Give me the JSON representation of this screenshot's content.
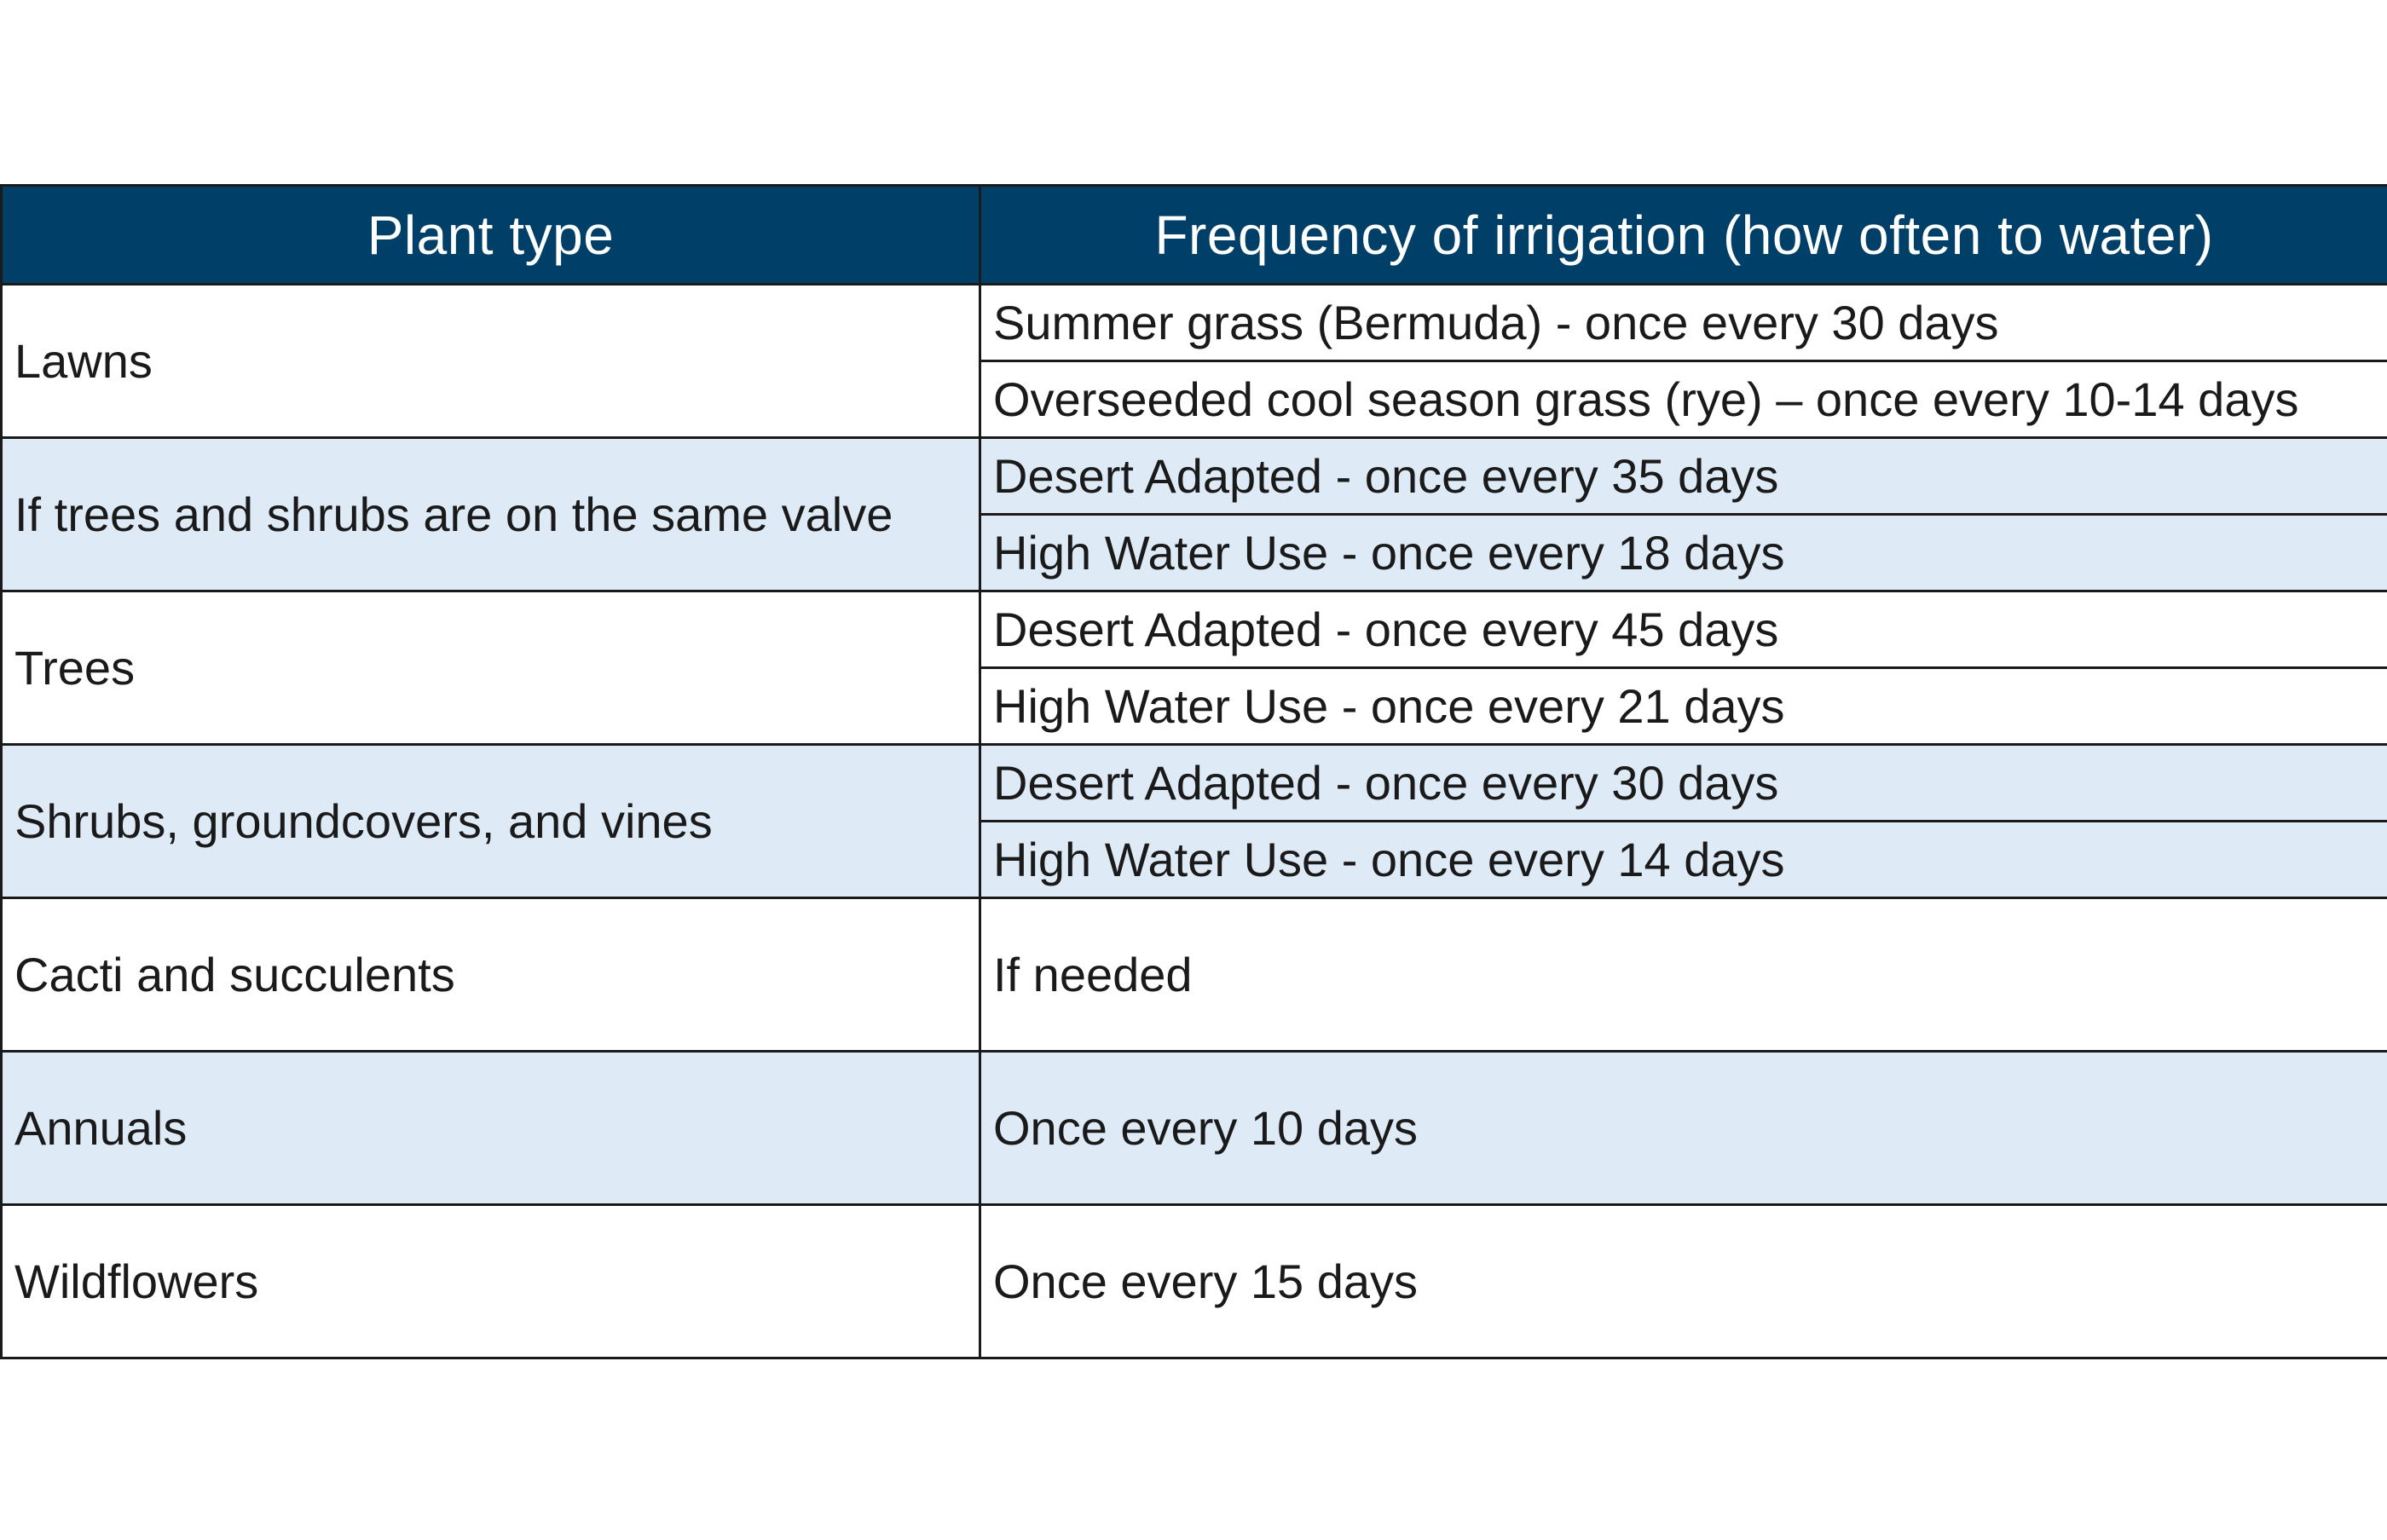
{
  "table": {
    "headers": {
      "plant_type": "Plant type",
      "frequency": "Frequency of irrigation (how often to water)"
    },
    "rows": [
      {
        "plant": "Lawns",
        "frequencies": [
          "Summer grass (Bermuda) - once every 30 days",
          "Overseeded cool season grass (rye) – once every 10-14 days"
        ]
      },
      {
        "plant": "If trees and shrubs are on the same valve",
        "frequencies": [
          "Desert Adapted - once every 35 days",
          "High Water Use - once every 18 days"
        ]
      },
      {
        "plant": "Trees",
        "frequencies": [
          "Desert Adapted - once every 45 days",
          "High Water Use - once every 21 days"
        ]
      },
      {
        "plant": "Shrubs, groundcovers, and vines",
        "frequencies": [
          "Desert Adapted - once every 30 days",
          "High Water Use - once every 14 days"
        ]
      },
      {
        "plant": "Cacti and succulents",
        "frequencies": [
          "If needed"
        ]
      },
      {
        "plant": "Annuals",
        "frequencies": [
          "Once every 10 days"
        ]
      },
      {
        "plant": "Wildflowers",
        "frequencies": [
          "Once every 15 days"
        ]
      }
    ]
  },
  "colors": {
    "header_background": "#003f67",
    "header_text": "#ffffff",
    "shaded_row": "#deebf7",
    "border": "#1a1a1a"
  }
}
